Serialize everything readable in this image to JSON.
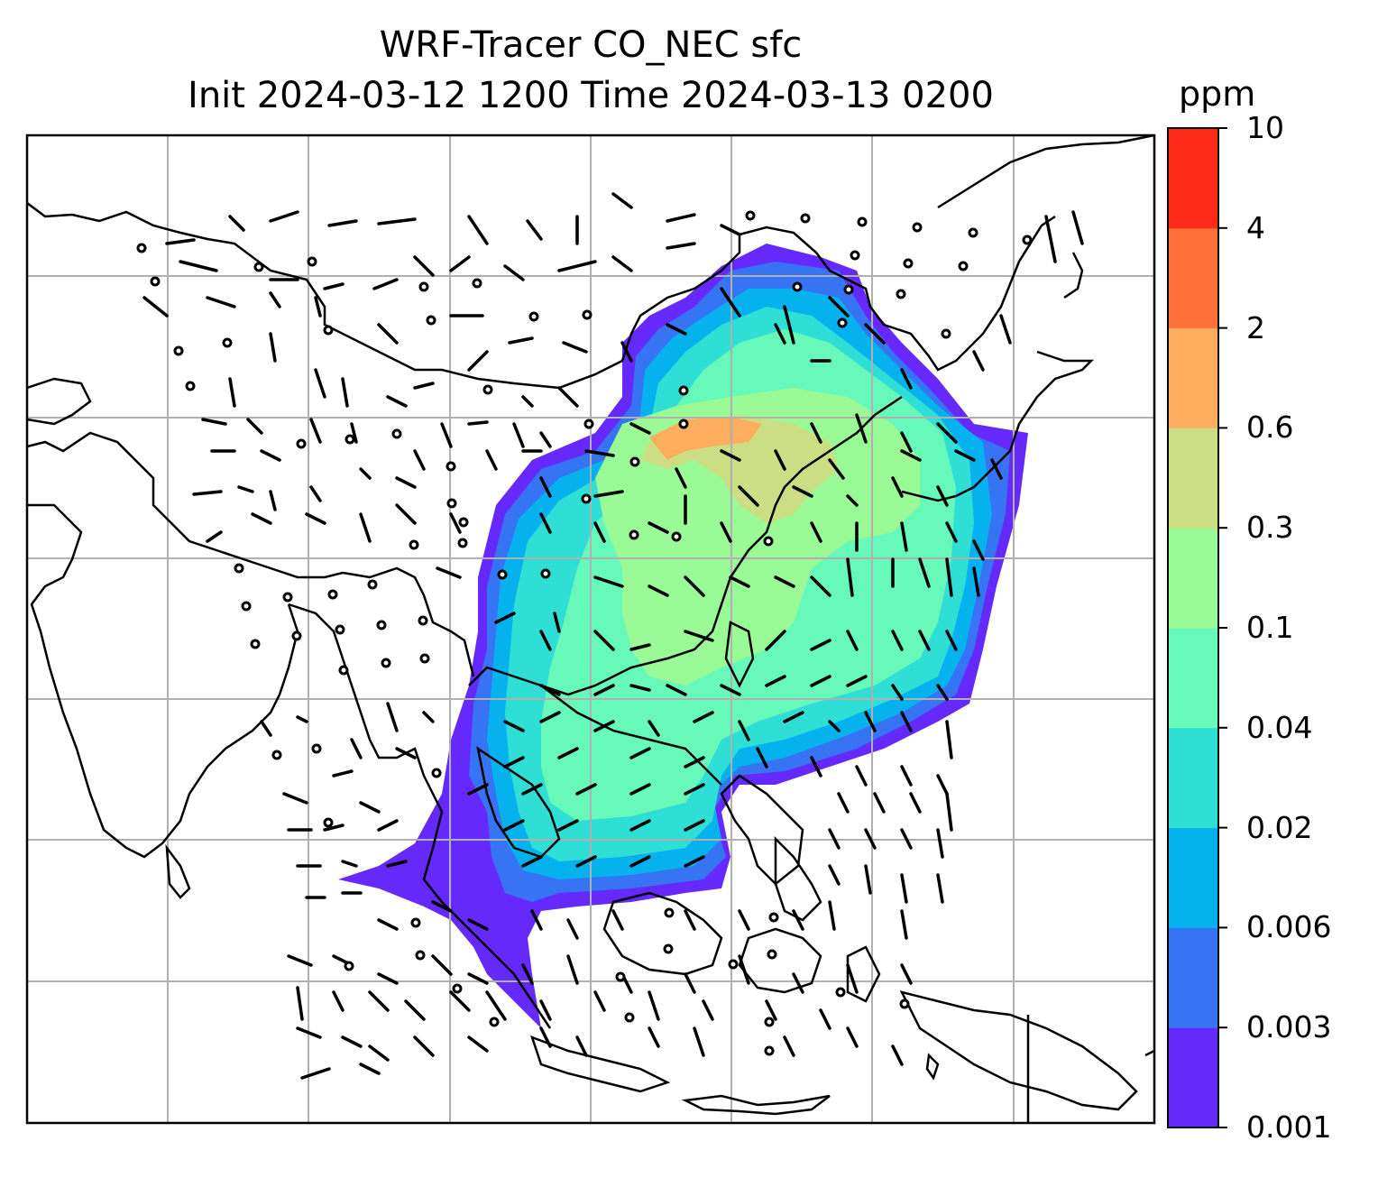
{
  "title": {
    "line1": "WRF-Tracer CO_NEC sfc",
    "line2": "Init 2024-03-12 1200 Time 2024-03-13 0200"
  },
  "colorbar": {
    "unit": "ppm",
    "levels": [
      "0.001",
      "0.003",
      "0.006",
      "0.02",
      "0.04",
      "0.1",
      "0.3",
      "0.6",
      "2",
      "4",
      "10"
    ],
    "colors": [
      "#6529fb",
      "#3674f4",
      "#05b2ed",
      "#2fdfd6",
      "#67f9b9",
      "#99fa96",
      "#ccde83",
      "#ffad5e",
      "#ff7139",
      "#ff2b18"
    ]
  },
  "map": {
    "gridlines": true,
    "gridline_color": "#b0b0b0",
    "wind_barbs": true,
    "coastlines": true
  }
}
